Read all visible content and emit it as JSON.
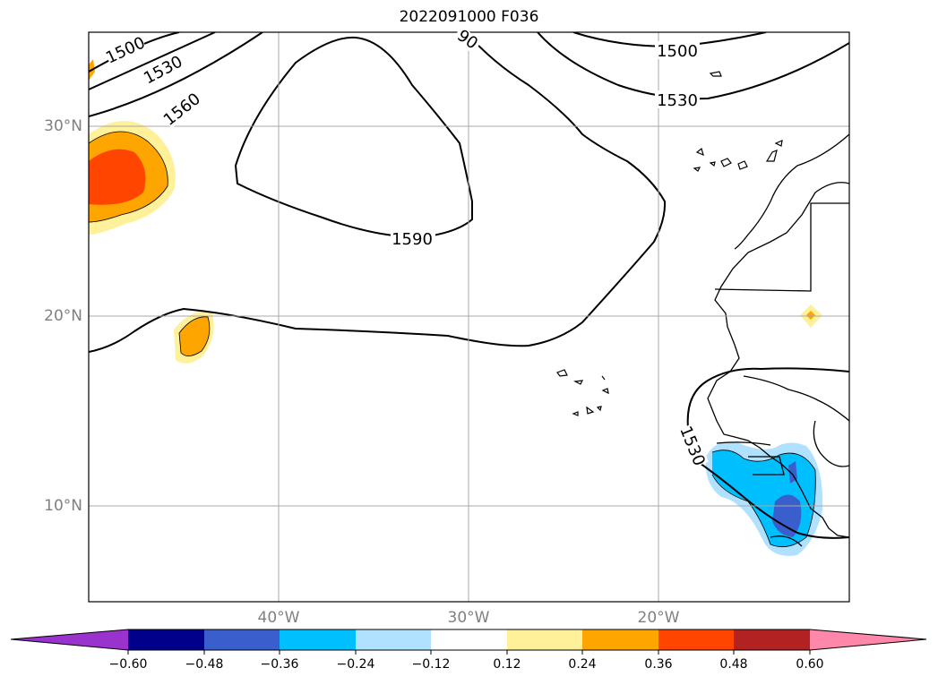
{
  "map": {
    "title": "2022091000 F036",
    "lat_labels": [
      "30°N",
      "20°N",
      "10°N"
    ],
    "lon_labels": [
      "40°W",
      "30°W",
      "20°W"
    ],
    "contour_labels": [
      "1500",
      "1530",
      "1560",
      "1590",
      "1500",
      "1530",
      "1530",
      "90"
    ]
  },
  "colorbar": {
    "tick_labels": [
      "−0.60",
      "−0.48",
      "−0.36",
      "−0.24",
      "−0.12",
      "0.12",
      "0.24",
      "0.36",
      "0.48",
      "0.60"
    ],
    "colors": [
      "#9a32cd",
      "#00008b",
      "#3a5fcd",
      "#00bfff",
      "#b0e2ff",
      "#ffffff",
      "#fff09a",
      "#ffa500",
      "#ff4500",
      "#b22222",
      "#ff88aa"
    ]
  }
}
